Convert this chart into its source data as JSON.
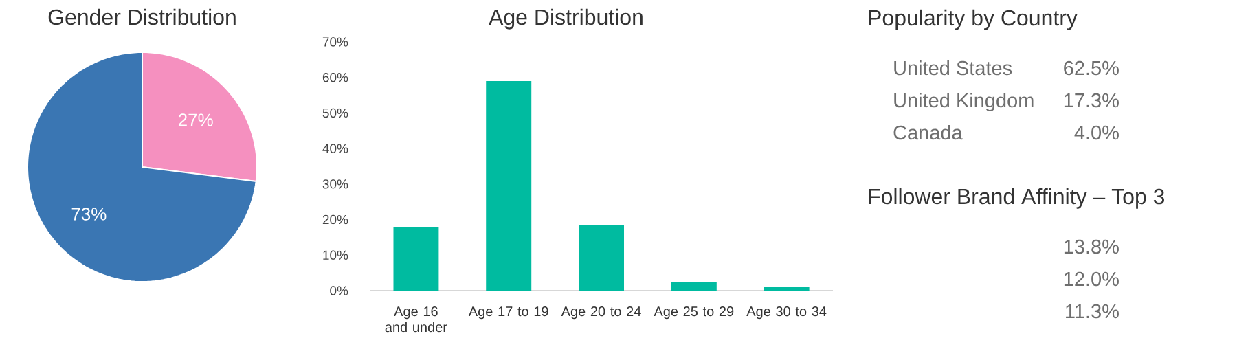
{
  "chart_data": [
    {
      "type": "pie",
      "title": "Gender Distribution",
      "categories": [
        null,
        null
      ],
      "values": [
        27,
        73
      ],
      "colors": [
        "#f590bf",
        "#3a76b3"
      ],
      "value_labels": [
        "27%",
        "73%"
      ]
    },
    {
      "type": "bar",
      "title": "Age Distribution",
      "categories": [
        "Age 16 and under",
        "Age 17 to 19",
        "Age 20 to 24",
        "Age 25 to 29",
        "Age 30 to 34"
      ],
      "values": [
        18,
        59,
        18.5,
        2.5,
        1
      ],
      "color": "#00bba0",
      "ylim": [
        0,
        70
      ],
      "yticks": [
        {
          "value": 0,
          "label": "0%"
        },
        {
          "value": 10,
          "label": "10%"
        },
        {
          "value": 20,
          "label": "20%"
        },
        {
          "value": 30,
          "label": "30%"
        },
        {
          "value": 40,
          "label": "40%"
        },
        {
          "value": 50,
          "label": "50%"
        },
        {
          "value": 60,
          "label": "60%"
        },
        {
          "value": 70,
          "label": "70%"
        }
      ]
    },
    {
      "type": "other",
      "title": "Popularity by Country",
      "categories": [
        "United States",
        "United Kingdom",
        "Canada"
      ],
      "values": [
        62.5,
        17.3,
        4.0
      ],
      "value_labels": [
        "62.5%",
        "17.3%",
        "4.0%"
      ]
    },
    {
      "type": "other",
      "title": "Follower Brand Affinity – Top 3",
      "categories": [
        null,
        null,
        null
      ],
      "values": [
        13.8,
        12.0,
        11.3
      ],
      "value_labels": [
        "13.8%",
        "12.0%",
        "11.3%"
      ]
    }
  ]
}
